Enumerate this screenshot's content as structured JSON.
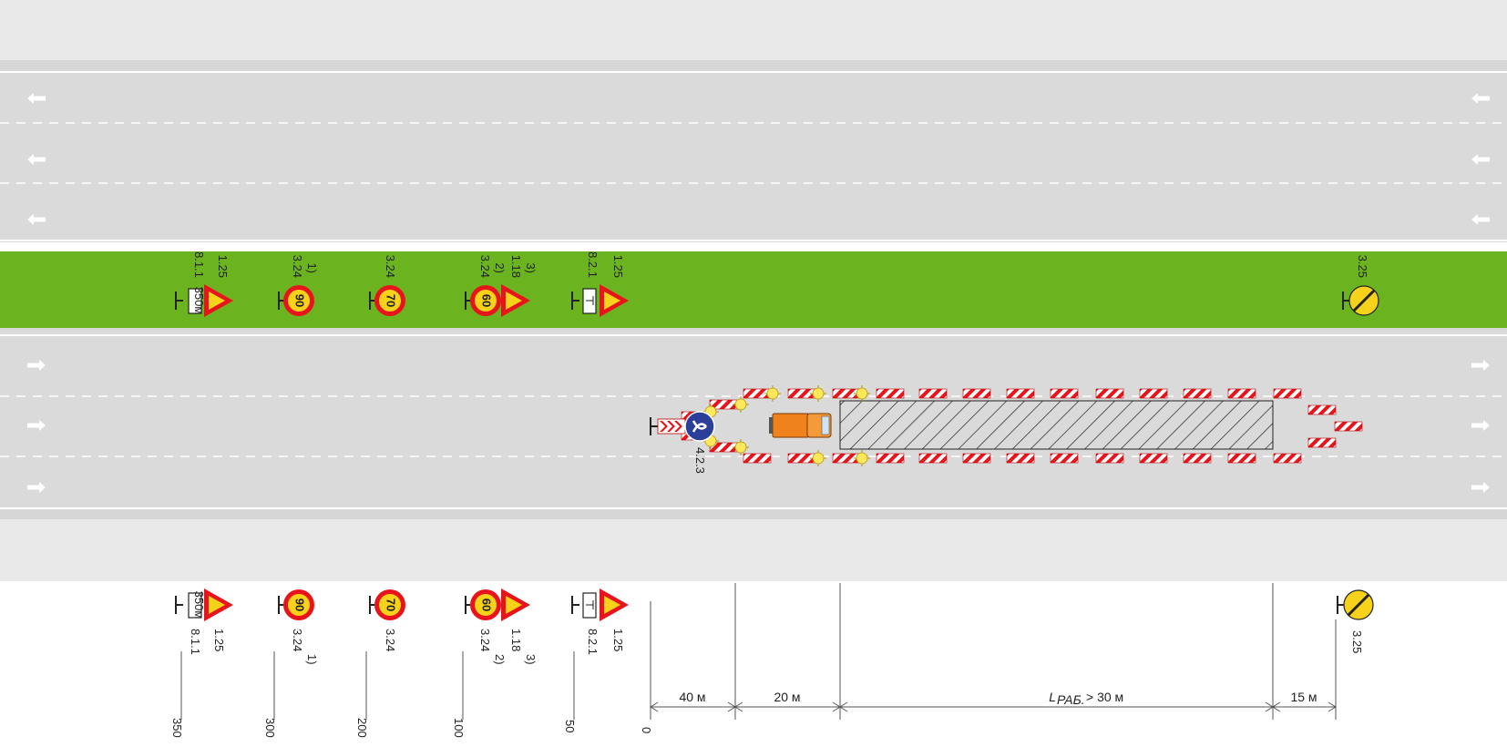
{
  "scheme": {
    "sign_groups": [
      {
        "signs": [
          {
            "code": "8.1.1",
            "plate": "350м"
          },
          {
            "code": "1.25",
            "plate": ""
          }
        ],
        "distance": "350"
      },
      {
        "signs": [
          {
            "code": "3.24",
            "note": "1)",
            "speed": "90"
          }
        ],
        "distance": "300"
      },
      {
        "signs": [
          {
            "code": "3.24",
            "note": "",
            "speed": "70"
          }
        ],
        "distance": "200"
      },
      {
        "signs": [
          {
            "code": "3.24",
            "note": "2)",
            "speed": "60"
          },
          {
            "code": "1.18",
            "note": "3)"
          }
        ],
        "distance": "100"
      },
      {
        "signs": [
          {
            "code": "8.2.1",
            "plate": ""
          },
          {
            "code": "1.25",
            "plate": ""
          }
        ],
        "distance": "50"
      }
    ],
    "zero_mark": "0",
    "end_sign": {
      "code": "3.25"
    },
    "detour_sign": {
      "code": "4.2.3"
    },
    "dimensions": {
      "approach": "40 м",
      "buffer": "20 м",
      "work_zone_symbol": "L",
      "work_zone_subscript": "РАБ.",
      "work_zone_value": "> 30 м",
      "end_taper": "15 м"
    },
    "colors": {
      "asphalt": "#dcdcdc",
      "shoulder": "#e7e7e7",
      "median": "#6cb320",
      "warning_red": "#e8141c",
      "sign_yellow": "#f6d21a",
      "vehicle_orange": "#f0821e",
      "mandatory_blue": "#2b3f9a"
    },
    "icons": [
      "arrow-left-icon",
      "arrow-right-icon",
      "road-works-sign-icon",
      "speed-limit-sign-icon",
      "uneven-road-sign-icon",
      "end-of-restrictions-sign-icon",
      "keep-left-right-sign-icon",
      "warning-light-icon",
      "work-vehicle-icon"
    ]
  }
}
